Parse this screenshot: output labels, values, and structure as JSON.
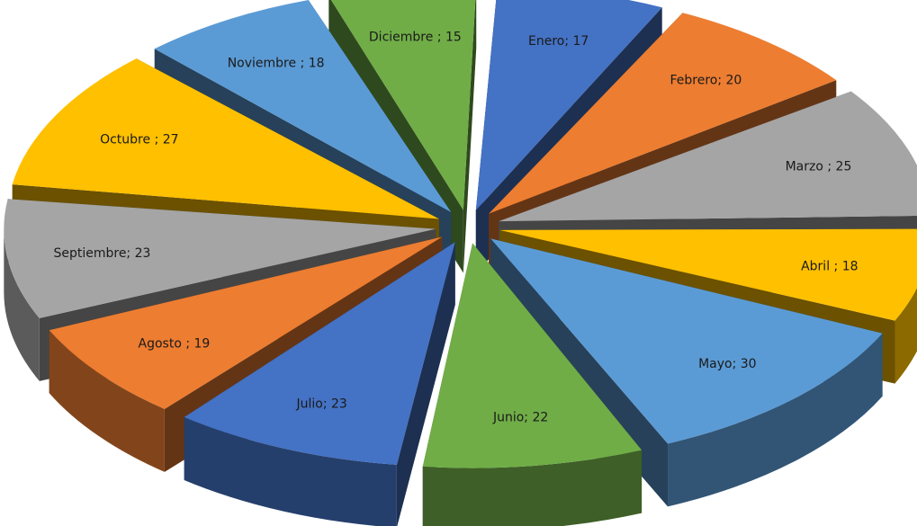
{
  "chart_data": {
    "type": "pie",
    "style": "3d-exploded",
    "title": "",
    "labels": [
      "Enero",
      "Febrero",
      "Marzo",
      "Abril",
      "Mayo",
      "Junio",
      "Julio",
      "Agosto",
      "Septiembre",
      "Octubre",
      "Noviembre",
      "Diciembre"
    ],
    "values": [
      17,
      20,
      25,
      18,
      30,
      22,
      23,
      19,
      23,
      27,
      18,
      15
    ],
    "data_labels": [
      "Enero; 17",
      "Febrero; 20",
      "Marzo ; 25",
      "Abril ; 18",
      "Mayo; 30",
      "Junio; 22",
      "Julio; 23",
      "Agosto ; 19",
      "Septiembre; 23",
      "Octubre ; 27",
      "Noviembre ; 18",
      "Diciembre ; 15"
    ],
    "colors": [
      "#4472c4",
      "#ed7d31",
      "#a5a5a5",
      "#ffc000",
      "#5b9bd5",
      "#70ad47",
      "#4472c4",
      "#ed7d31",
      "#a5a5a5",
      "#ffc000",
      "#5b9bd5",
      "#70ad47"
    ],
    "legend": "none"
  }
}
